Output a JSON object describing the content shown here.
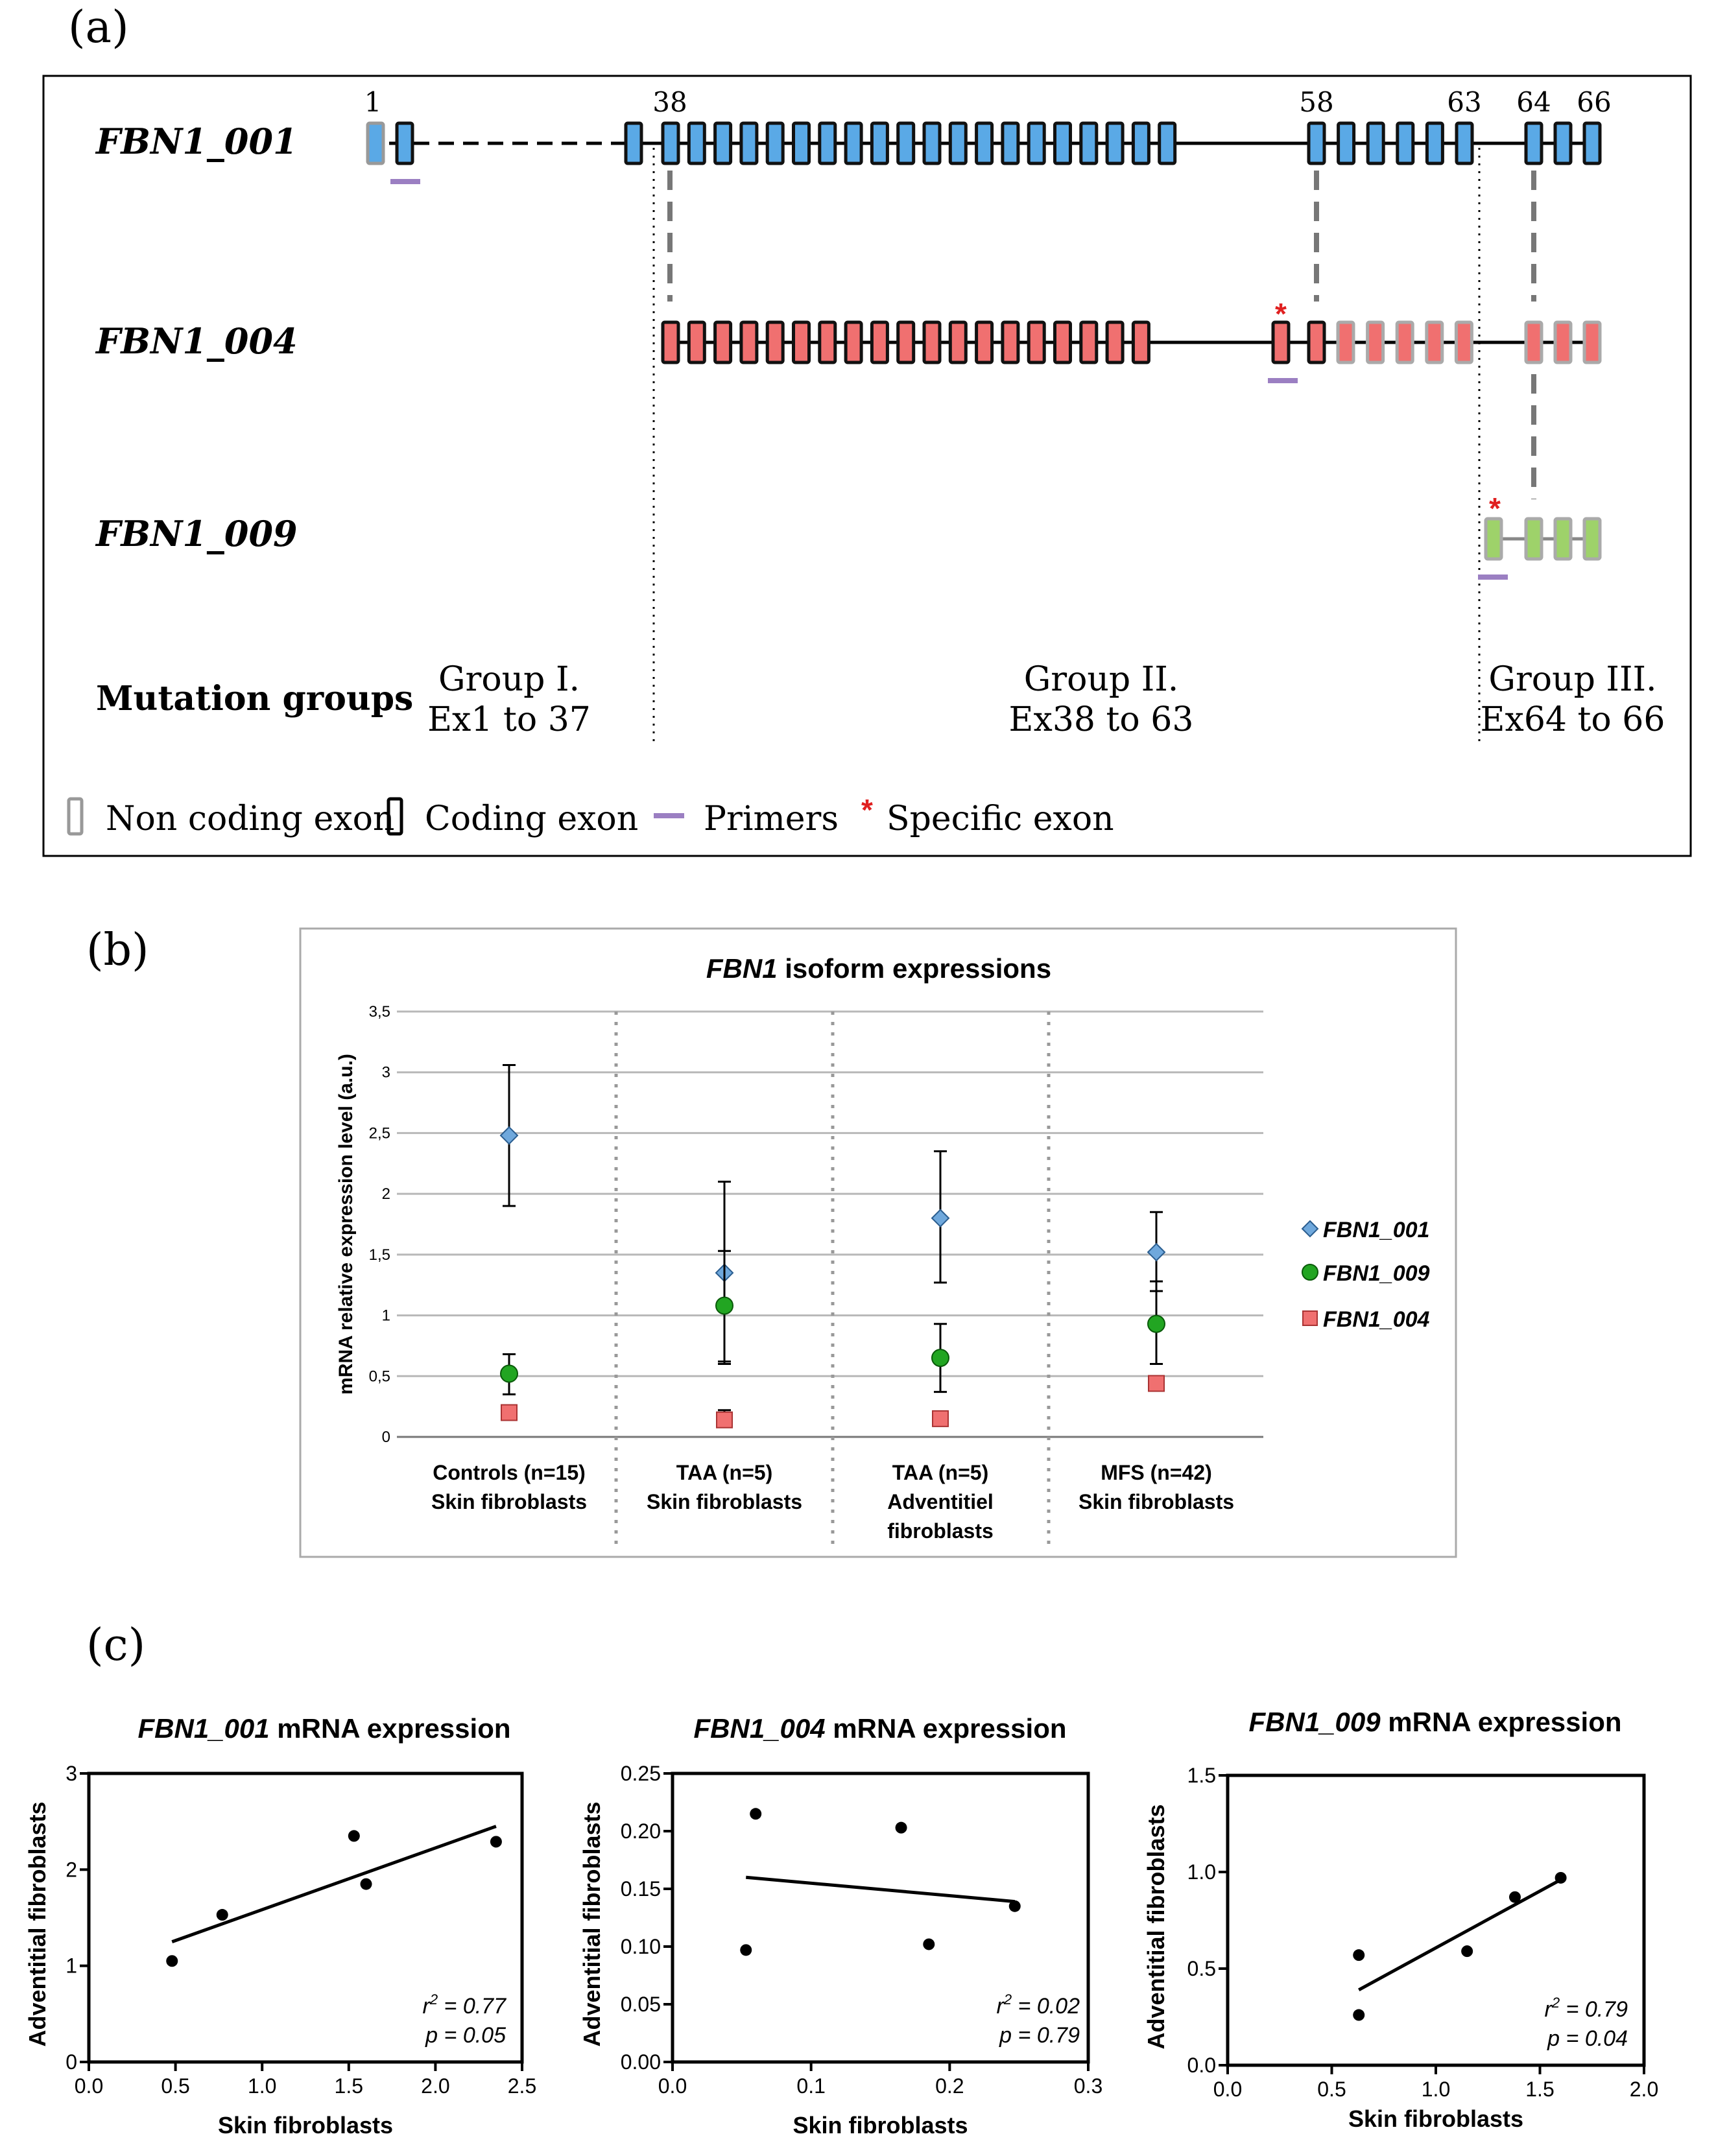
{
  "panel_a": {
    "label": "(a)",
    "exon_numbers": [
      "1",
      "38",
      "58",
      "63",
      "64",
      "66"
    ],
    "isoforms": [
      {
        "name": "FBN1_001",
        "color": "#5aa9e6"
      },
      {
        "name": "FBN1_004",
        "color": "#f07070"
      },
      {
        "name": "FBN1_009",
        "color": "#9ed26a"
      }
    ],
    "specific_mark": "*",
    "mutation_groups_label": "Mutation groups",
    "groups": [
      {
        "title": "Group I.",
        "range": "Ex1 to 37"
      },
      {
        "title": "Group II.",
        "range": "Ex38 to 63"
      },
      {
        "title": "Group III.",
        "range": "Ex64 to 66"
      }
    ],
    "legend": {
      "non_coding": "Non coding exon",
      "coding": "Coding exon",
      "primers": "Primers",
      "specific_mark": "*",
      "specific": "Specific exon"
    },
    "colors": {
      "primer": "#9b7fc2",
      "specific": "#e02020",
      "connector": "#777777"
    }
  },
  "panel_b": {
    "label": "(b)",
    "title_italic": "FBN1",
    "title_rest": " isoform expressions",
    "chart_data": {
      "type": "scatter",
      "title": "FBN1 isoform expressions",
      "ylabel": "mRNA relative expression level (a.u.)",
      "ylim": [
        0,
        3.5
      ],
      "yticks": [
        "0",
        "0,5",
        "1",
        "1,5",
        "2",
        "2,5",
        "3",
        "3,5"
      ],
      "categories": [
        [
          "Controls (n=15)",
          "Skin fibroblasts"
        ],
        [
          "TAA (n=5)",
          "Skin fibroblasts"
        ],
        [
          "TAA (n=5)",
          "Adventitiel",
          "fibroblasts"
        ],
        [
          "MFS (n=42)",
          "Skin fibroblasts"
        ]
      ],
      "series": [
        {
          "name": "FBN1_001",
          "marker": "diamond",
          "color": "#6fa8dc",
          "values": [
            2.48,
            1.35,
            1.8,
            1.52
          ],
          "err_low": [
            1.9,
            0.6,
            1.27,
            1.2
          ],
          "err_high": [
            3.06,
            2.1,
            2.35,
            1.85
          ]
        },
        {
          "name": "FBN1_009",
          "marker": "circle",
          "color": "#22a522",
          "values": [
            0.52,
            1.08,
            0.65,
            0.93
          ],
          "err_low": [
            0.35,
            0.62,
            0.37,
            0.6
          ],
          "err_high": [
            0.68,
            1.53,
            0.93,
            1.28
          ]
        },
        {
          "name": "FBN1_004",
          "marker": "square",
          "color": "#f07070",
          "values": [
            0.2,
            0.14,
            0.15,
            0.44
          ],
          "err_low": [
            0.16,
            0.08,
            0.12,
            0.4
          ],
          "err_high": [
            0.24,
            0.22,
            0.18,
            0.47
          ]
        }
      ]
    }
  },
  "panel_c": {
    "label": "(c)",
    "chart_data": [
      {
        "type": "scatter",
        "title_italic": "FBN1_001",
        "title_rest": " mRNA expression",
        "xlabel": "Skin fibroblasts",
        "ylabel": "Adventitial fibroblasts",
        "xlim": [
          0,
          2.5
        ],
        "ylim": [
          0,
          3
        ],
        "xticks": [
          "0.0",
          "0.5",
          "1.0",
          "1.5",
          "2.0",
          "2.5"
        ],
        "yticks": [
          "0",
          "1",
          "2",
          "3"
        ],
        "points": [
          [
            0.48,
            1.05
          ],
          [
            0.77,
            1.53
          ],
          [
            1.53,
            2.35
          ],
          [
            1.6,
            1.85
          ],
          [
            2.35,
            2.29
          ]
        ],
        "fit": [
          [
            0.48,
            1.25
          ],
          [
            2.35,
            2.45
          ]
        ],
        "r2_label": "r",
        "r2_value": " = 0.77",
        "p_text": "p = 0.05"
      },
      {
        "type": "scatter",
        "title_italic": "FBN1_004",
        "title_rest": " mRNA expression",
        "xlabel": "Skin fibroblasts",
        "ylabel": "Adventitial fibroblasts",
        "xlim": [
          0,
          0.3
        ],
        "ylim": [
          0,
          0.25
        ],
        "xticks": [
          "0.0",
          "0.1",
          "0.2",
          "0.3"
        ],
        "yticks": [
          "0.00",
          "0.05",
          "0.10",
          "0.15",
          "0.20",
          "0.25"
        ],
        "points": [
          [
            0.053,
            0.097
          ],
          [
            0.06,
            0.215
          ],
          [
            0.165,
            0.203
          ],
          [
            0.185,
            0.102
          ],
          [
            0.247,
            0.135
          ]
        ],
        "fit": [
          [
            0.053,
            0.16
          ],
          [
            0.247,
            0.139
          ]
        ],
        "r2_label": "r",
        "r2_value": " = 0.02",
        "p_text": "p = 0.79"
      },
      {
        "type": "scatter",
        "title_italic": "FBN1_009",
        "title_rest": " mRNA expression",
        "xlabel": "Skin fibroblasts",
        "ylabel": "Adventitial fibroblasts",
        "xlim": [
          0,
          2.0
        ],
        "ylim": [
          0,
          1.5
        ],
        "xticks": [
          "0.0",
          "0.5",
          "1.0",
          "1.5",
          "2.0"
        ],
        "yticks": [
          "0.0",
          "0.5",
          "1.0",
          "1.5"
        ],
        "points": [
          [
            0.63,
            0.57
          ],
          [
            0.63,
            0.26
          ],
          [
            1.15,
            0.59
          ],
          [
            1.38,
            0.87
          ],
          [
            1.6,
            0.97
          ]
        ],
        "fit": [
          [
            0.63,
            0.39
          ],
          [
            1.6,
            0.96
          ]
        ],
        "r2_label": "r",
        "r2_value": " = 0.79",
        "p_text": "p = 0.04"
      }
    ]
  }
}
